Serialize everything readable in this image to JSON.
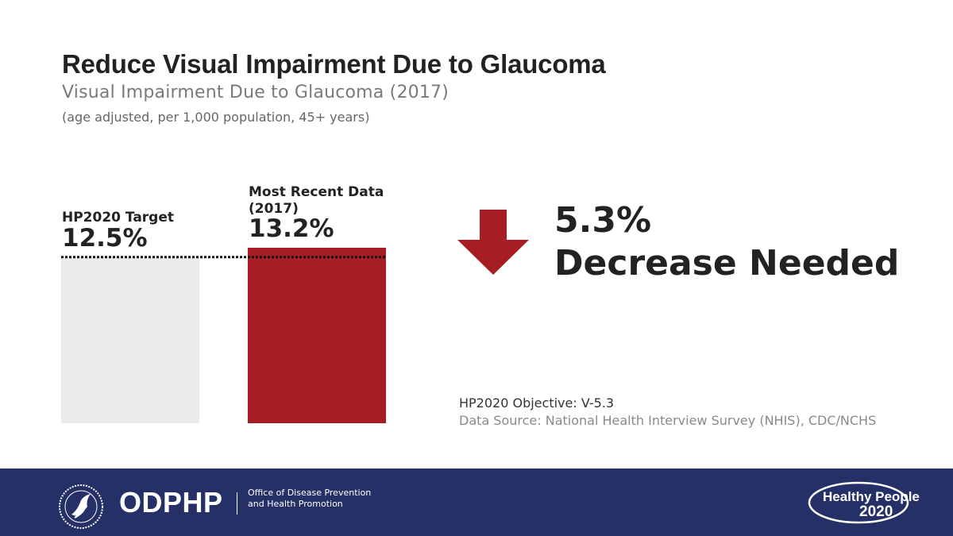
{
  "title": "Reduce Visual Impairment Due to Glaucoma",
  "subtitle": "Visual Impairment Due to Glaucoma (2017)",
  "note": "(age adjusted, per 1,000 population, 45+ years)",
  "chart_data": {
    "type": "bar",
    "categories": [
      "HP2020 Target",
      "Most Recent Data (2017)"
    ],
    "values": [
      12.5,
      13.2
    ],
    "value_labels": [
      "12.5%",
      "13.2%"
    ],
    "colors": [
      "#ebebed",
      "#a61d24"
    ],
    "target_line": {
      "value": 12.5,
      "style": "dotted",
      "color": "#111111"
    },
    "ylim": [
      0,
      13.2
    ]
  },
  "callout": {
    "percent": "5.3%",
    "text": "Decrease Needed",
    "arrow_icon": "down-arrow-icon",
    "arrow_color": "#a61d24"
  },
  "objective": "HP2020 Objective: V-5.3",
  "source": "Data Source: National Health Interview Survey (NHIS), CDC/NCHS",
  "footer": {
    "background": "#243066",
    "seal_icon": "hhs-seal-icon",
    "logo_text": "ODPHP",
    "org_name": "Office of Disease Prevention and Health Promotion",
    "hp_logo": {
      "line1": "Healthy People",
      "line2": "2020"
    }
  }
}
